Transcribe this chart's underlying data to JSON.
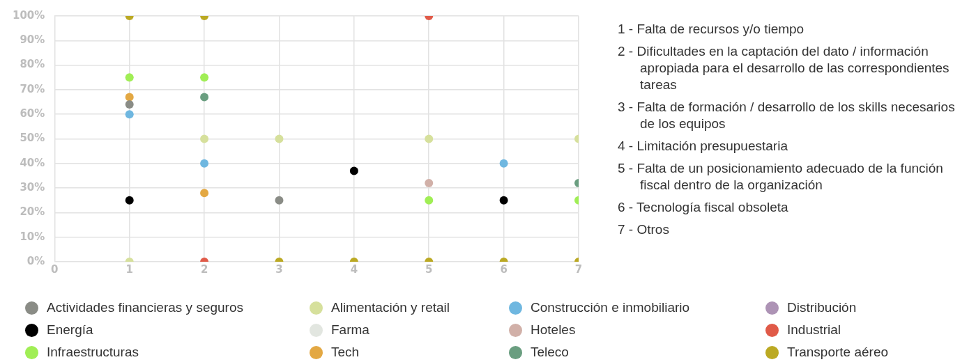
{
  "chart_data": {
    "type": "scatter",
    "x": [
      1,
      2,
      3,
      4,
      5,
      6,
      7
    ],
    "xlim": [
      0,
      7
    ],
    "xticks": [
      0,
      1,
      2,
      3,
      4,
      5,
      6,
      7
    ],
    "ylim": [
      0,
      100
    ],
    "yticks": [
      {
        "value": 0,
        "label": "0%"
      },
      {
        "value": 10,
        "label": "10%"
      },
      {
        "value": 20,
        "label": "20%"
      },
      {
        "value": 30,
        "label": "30%"
      },
      {
        "value": 40,
        "label": "40%"
      },
      {
        "value": 50,
        "label": "50%"
      },
      {
        "value": 60,
        "label": "60%"
      },
      {
        "value": 70,
        "label": "70%"
      },
      {
        "value": 80,
        "label": "80%"
      },
      {
        "value": 90,
        "label": "90%"
      },
      {
        "value": 100,
        "label": "100%"
      }
    ],
    "grid": true,
    "legend": "bottom",
    "marker": "circle",
    "series": [
      {
        "name": "Actividades financieras y seguros",
        "color": "#8a8c86",
        "values": [
          64,
          null,
          25,
          null,
          null,
          null,
          null
        ]
      },
      {
        "name": "Alimentación y retail",
        "color": "#d6e09c",
        "values": [
          0,
          50,
          50,
          null,
          50,
          null,
          50
        ]
      },
      {
        "name": "Construcción e inmobiliario",
        "color": "#6fb7e0",
        "values": [
          60,
          40,
          null,
          null,
          null,
          40,
          null
        ]
      },
      {
        "name": "Distribución",
        "color": "#ad93b5",
        "values": [
          null,
          null,
          null,
          null,
          null,
          null,
          null
        ]
      },
      {
        "name": "Energía",
        "color": "#000000",
        "values": [
          25,
          null,
          null,
          37,
          null,
          25,
          null
        ]
      },
      {
        "name": "Farma",
        "color": "#e2e6e0",
        "values": [
          null,
          null,
          null,
          null,
          null,
          null,
          null
        ]
      },
      {
        "name": "Hoteles",
        "color": "#d1b0a8",
        "values": [
          null,
          null,
          null,
          null,
          32,
          null,
          null
        ]
      },
      {
        "name": "Industrial",
        "color": "#e05a48",
        "values": [
          null,
          0,
          null,
          null,
          100,
          null,
          null
        ]
      },
      {
        "name": "Infraestructuras",
        "color": "#a0ee55",
        "values": [
          75,
          75,
          null,
          null,
          25,
          null,
          25
        ]
      },
      {
        "name": "Tech",
        "color": "#e3a843",
        "values": [
          67,
          28,
          null,
          null,
          null,
          null,
          null
        ]
      },
      {
        "name": "Teleco",
        "color": "#6a9e80",
        "values": [
          null,
          67,
          null,
          null,
          null,
          null,
          32
        ]
      },
      {
        "name": "Transporte aéreo",
        "color": "#bba923",
        "values": [
          100,
          100,
          0,
          0,
          0,
          0,
          0
        ]
      }
    ],
    "annotations": [
      "1 - Falta de recursos y/o tiempo",
      "2 - Dificultades en la captación del dato / información apropiada para el desarrollo de las correspondientes tareas",
      "3 - Falta de formación / desarrollo de los skills necesarios de los equipos",
      "4 - Limitación presupuestaria",
      "5 - Falta de un posicionamiento adecuado de la función fiscal dentro de la organización",
      "6 - Tecnología fiscal obsoleta",
      "7 - Otros"
    ]
  }
}
